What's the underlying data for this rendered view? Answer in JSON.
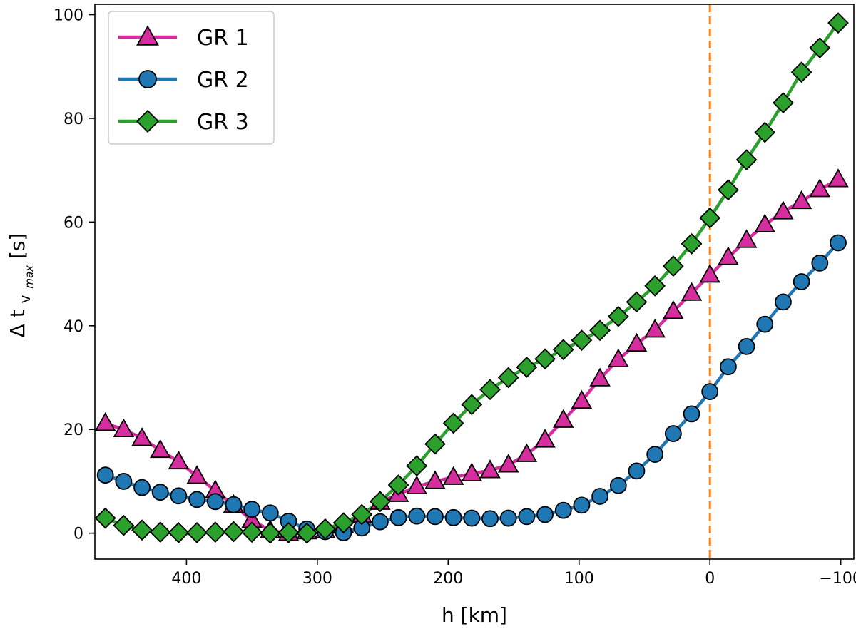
{
  "chart_data": {
    "type": "line",
    "title": "",
    "xlabel": "h [km]",
    "ylabel_prefix": "Δ t",
    "ylabel_sub": "v",
    "ylabel_subsub": "max",
    "ylabel_suffix": " [s]",
    "xlim": [
      470,
      -110
    ],
    "ylim": [
      -5,
      102
    ],
    "x_inverted": true,
    "xticks": [
      400,
      300,
      200,
      100,
      0,
      -100
    ],
    "xtick_labels": [
      "400",
      "300",
      "200",
      "100",
      "0",
      "−100"
    ],
    "yticks": [
      0,
      20,
      40,
      60,
      80,
      100
    ],
    "ytick_labels": [
      "0",
      "20",
      "40",
      "60",
      "80",
      "100"
    ],
    "legend_position": "top-left",
    "vline": {
      "x": 0,
      "color": "#ff7f0e",
      "style": "dashed"
    },
    "x": [
      462,
      448,
      434,
      420,
      406,
      392,
      378,
      364,
      350,
      336,
      322,
      308,
      294,
      280,
      266,
      252,
      238,
      224,
      210,
      196,
      182,
      168,
      154,
      140,
      126,
      112,
      98,
      84,
      70,
      56,
      42,
      28,
      14,
      0,
      -14,
      -28,
      -42,
      -56,
      -70,
      -84,
      -98
    ],
    "series": [
      {
        "name": "GR 1",
        "color": "#d62d9e",
        "marker": "triangle",
        "values": [
          21.2,
          20.0,
          18.3,
          16.0,
          13.8,
          11.0,
          8.2,
          5.4,
          2.5,
          0.5,
          0.0,
          0.3,
          0.5,
          1.5,
          3.5,
          6.0,
          7.5,
          9.0,
          10.0,
          10.8,
          11.5,
          12.1,
          13.2,
          15.2,
          18.0,
          21.8,
          25.5,
          29.8,
          33.5,
          36.5,
          39.2,
          42.8,
          46.3,
          49.8,
          53.2,
          56.5,
          59.5,
          62.0,
          64.0,
          66.3,
          68.2
        ]
      },
      {
        "name": "GR 2",
        "color": "#1f77b4",
        "marker": "circle",
        "values": [
          11.2,
          10.0,
          8.8,
          7.9,
          7.2,
          6.5,
          6.1,
          5.5,
          4.6,
          3.9,
          2.3,
          0.8,
          0.3,
          0.1,
          1.0,
          2.2,
          3.0,
          3.3,
          3.2,
          3.0,
          2.9,
          2.8,
          2.9,
          3.2,
          3.6,
          4.4,
          5.4,
          7.1,
          9.2,
          12.0,
          15.2,
          19.2,
          23.0,
          27.3,
          32.1,
          36.0,
          40.3,
          44.6,
          48.5,
          52.1,
          56.0
        ]
      },
      {
        "name": "GR 3",
        "color": "#2ca02c",
        "marker": "diamond",
        "values": [
          2.9,
          1.5,
          0.6,
          0.2,
          0.1,
          0.1,
          0.2,
          0.3,
          0.2,
          0.0,
          0.1,
          0.0,
          0.8,
          2.0,
          3.6,
          6.1,
          9.3,
          13.0,
          17.2,
          21.2,
          24.8,
          27.7,
          30.0,
          32.0,
          33.6,
          35.4,
          37.2,
          39.1,
          41.8,
          44.6,
          47.7,
          51.5,
          55.8,
          60.8,
          66.2,
          72.0,
          77.3,
          83.0,
          88.9,
          93.6,
          98.4
        ]
      }
    ]
  }
}
